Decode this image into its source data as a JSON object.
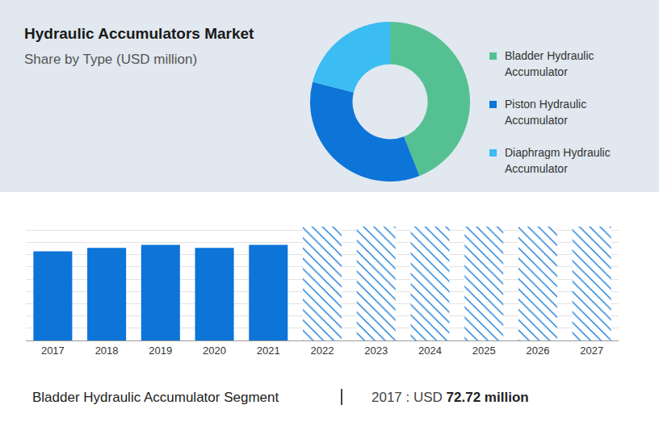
{
  "title": "Hydraulic Accumulators Market",
  "subtitle": "Share by Type (USD million)",
  "chart_data": [
    {
      "type": "donut",
      "categories": [
        "Bladder Hydraulic Accumulator",
        "Piston Hydraulic Accumulator",
        "Diaphragm Hydraulic Accumulator"
      ],
      "values": [
        44,
        35,
        21
      ],
      "colors": [
        "#55c193",
        "#0d74d8",
        "#3bbcf3"
      ],
      "legend": "right",
      "data_labels": false
    },
    {
      "type": "bar",
      "categories": [
        "2017",
        "2018",
        "2019",
        "2020",
        "2021",
        "2022",
        "2023",
        "2024",
        "2025",
        "2026",
        "2027"
      ],
      "series": [
        {
          "color": "#0d74d8",
          "values": [
            72.72,
            75.5,
            78,
            75.5,
            78,
            null,
            null,
            null,
            null,
            null,
            null
          ]
        },
        {
          "color": "#0d74d8",
          "marker": "hatch",
          "values": [
            null,
            null,
            null,
            null,
            null,
            93,
            93,
            93,
            93,
            93,
            93
          ]
        }
      ],
      "ylim": [
        0,
        100
      ],
      "yticks": [
        0,
        10,
        20,
        30,
        40,
        50,
        60,
        70,
        80,
        90,
        100
      ],
      "grid": true,
      "tick_labels": "x"
    }
  ],
  "footer": {
    "segment": "Bladder Hydraulic Accumulator Segment",
    "key": "2017 : USD",
    "value": "72.72 million"
  }
}
